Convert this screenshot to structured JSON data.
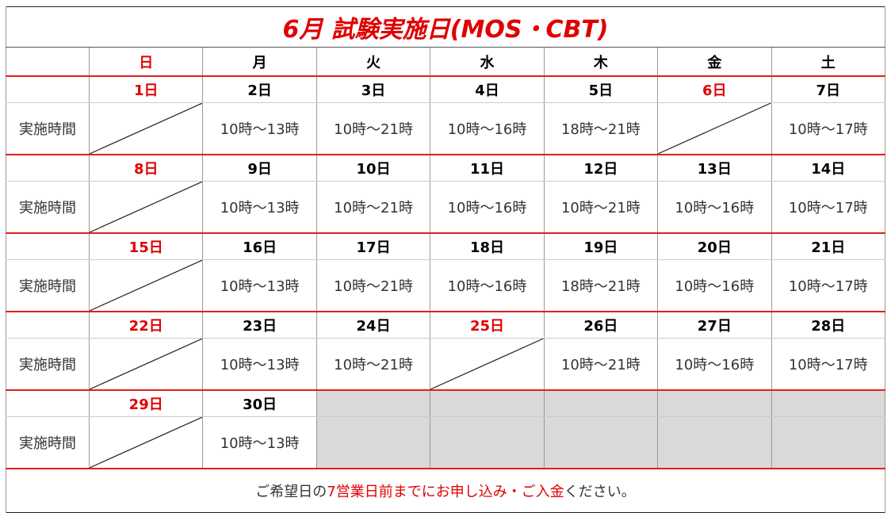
{
  "title": "6月 試験実施日(MOS・CBT)",
  "weekdays": [
    "日",
    "月",
    "火",
    "水",
    "木",
    "金",
    "土"
  ],
  "weeks": [
    {
      "label": "実施時間",
      "days": [
        {
          "date": "1日",
          "holiday": true
        },
        {
          "date": "2日",
          "time": "10時～13時"
        },
        {
          "date": "3日",
          "time": "10時～21時"
        },
        {
          "date": "4日",
          "time": "10時～16時"
        },
        {
          "date": "5日",
          "time": "18時～21時"
        },
        {
          "date": "6日",
          "holiday": true
        },
        {
          "date": "7日",
          "time": "10時～17時"
        }
      ]
    },
    {
      "label": "実施時間",
      "days": [
        {
          "date": "8日",
          "holiday": true
        },
        {
          "date": "9日",
          "time": "10時～13時"
        },
        {
          "date": "10日",
          "time": "10時～21時"
        },
        {
          "date": "11日",
          "time": "10時～16時"
        },
        {
          "date": "12日",
          "time": "10時～21時"
        },
        {
          "date": "13日",
          "time": "10時～16時"
        },
        {
          "date": "14日",
          "time": "10時～17時"
        }
      ]
    },
    {
      "label": "実施時間",
      "days": [
        {
          "date": "15日",
          "holiday": true
        },
        {
          "date": "16日",
          "time": "10時～13時"
        },
        {
          "date": "17日",
          "time": "10時～21時"
        },
        {
          "date": "18日",
          "time": "10時～16時"
        },
        {
          "date": "19日",
          "time": "18時～21時"
        },
        {
          "date": "20日",
          "time": "10時～16時"
        },
        {
          "date": "21日",
          "time": "10時～17時"
        }
      ]
    },
    {
      "label": "実施時間",
      "days": [
        {
          "date": "22日",
          "holiday": true
        },
        {
          "date": "23日",
          "time": "10時～13時"
        },
        {
          "date": "24日",
          "time": "10時～21時"
        },
        {
          "date": "25日",
          "holiday": true
        },
        {
          "date": "26日",
          "time": "10時～21時"
        },
        {
          "date": "27日",
          "time": "10時～16時"
        },
        {
          "date": "28日",
          "time": "10時～17時"
        }
      ]
    },
    {
      "label": "実施時間",
      "days": [
        {
          "date": "29日",
          "holiday": true
        },
        {
          "date": "30日",
          "time": "10時～13時"
        }
      ]
    }
  ],
  "footer": {
    "segments": [
      {
        "text": "ご希望日の",
        "highlight": false
      },
      {
        "text": "7営業日前までにお申し込み・ご入金",
        "highlight": true
      },
      {
        "text": "ください。",
        "highlight": false
      }
    ]
  }
}
